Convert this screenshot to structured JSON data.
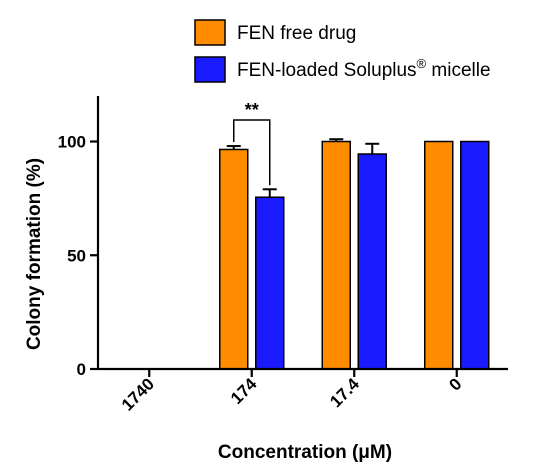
{
  "chart_data": {
    "type": "bar",
    "title": "",
    "xlabel": "Concentration (μM)",
    "ylabel": "Colony formation (%)",
    "ylim": [
      0,
      120
    ],
    "yticks": [
      0,
      50,
      100
    ],
    "categories": [
      "1740",
      "174",
      "17.4",
      "0"
    ],
    "series": [
      {
        "name": "FEN  free drug",
        "color": "#ff8c00",
        "values": [
          0,
          96.5,
          100,
          100
        ],
        "errors": [
          0,
          1.5,
          1.0,
          0
        ]
      },
      {
        "name": "FEN-loaded Soluplus® micelle",
        "color": "#1a1aff",
        "values": [
          0,
          75.5,
          94.5,
          100
        ],
        "errors": [
          0,
          3.5,
          4.5,
          0
        ]
      }
    ],
    "annotations": [
      {
        "text": "**",
        "category": "174",
        "between": [
          "FEN  free drug",
          "FEN-loaded Soluplus® micelle"
        ]
      }
    ],
    "legend_position": "top",
    "grid": false
  }
}
